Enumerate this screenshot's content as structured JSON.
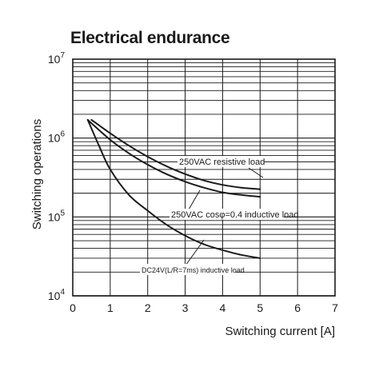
{
  "chart_data": {
    "type": "line",
    "title": "Electrical endurance",
    "xlabel": "Switching current [A]",
    "ylabel": "Switching operations",
    "xlim": [
      0,
      7
    ],
    "x_ticks": [
      "0",
      "1",
      "2",
      "3",
      "4",
      "5",
      "6",
      "7"
    ],
    "y_scale": "log",
    "ylim": [
      10000,
      10000000
    ],
    "y_ticks": [
      {
        "value": 10000,
        "base": "10",
        "exp": "4"
      },
      {
        "value": 100000,
        "base": "10",
        "exp": "5"
      },
      {
        "value": 1000000,
        "base": "10",
        "exp": "6"
      },
      {
        "value": 10000000,
        "base": "10",
        "exp": "7"
      }
    ],
    "grid": true,
    "series": [
      {
        "name": "250VAC resistive load",
        "x": [
          0.5,
          1.0,
          1.5,
          2.0,
          2.5,
          3.0,
          3.5,
          4.0,
          4.5,
          5.0
        ],
        "y": [
          1700000,
          1150000,
          800000,
          580000,
          440000,
          350000,
          290000,
          255000,
          235000,
          225000
        ]
      },
      {
        "name": "250VAC cosφ=0.4 inductive load",
        "x": [
          0.4,
          1.0,
          1.5,
          2.0,
          2.5,
          3.0,
          3.5,
          4.0,
          4.5,
          5.0
        ],
        "y": [
          1700000,
          950000,
          640000,
          460000,
          350000,
          280000,
          235000,
          205000,
          190000,
          180000
        ]
      },
      {
        "name": "DC24V(L/R=7ms) inductive load",
        "x": [
          0.4,
          0.7,
          1.0,
          1.5,
          2.0,
          2.5,
          3.0,
          3.5,
          4.0,
          4.5,
          5.0
        ],
        "y": [
          1700000,
          800000,
          400000,
          190000,
          120000,
          80000,
          58000,
          45000,
          38000,
          33000,
          30000
        ]
      }
    ],
    "colors": {
      "line": "#1a1a1a",
      "grid": "#1a1a1a"
    }
  }
}
